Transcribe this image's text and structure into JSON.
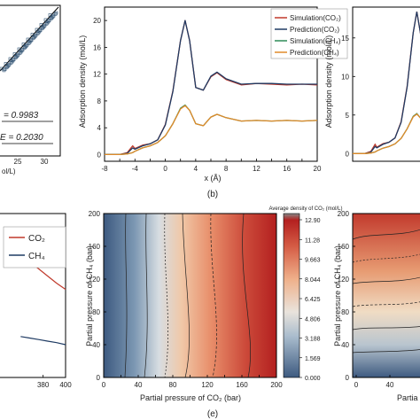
{
  "panel_a": {
    "stat_r2": "= 0.9983",
    "stat_err": "E = 0.2030",
    "xticks": [
      "25",
      "30"
    ],
    "xunit": "ol/L)"
  },
  "panel_b": {
    "caption": "(b)"
  },
  "panel_e": {
    "caption": "(e)",
    "colorbar_title": "Average density of CO₂ (mol/L)"
  },
  "panel_f": {
    "xlabel_partial": "Partia"
  },
  "colors": {
    "sim_co2": "#c0392b",
    "pred_co2": "#1f3b63",
    "sim_ch4": "#2e8b57",
    "pred_ch4": "#e08a2a"
  },
  "chart_data": [
    {
      "type": "scatter",
      "title": "",
      "xticks": [
        "25",
        "30"
      ],
      "note": "parity plot, partially cropped"
    },
    {
      "type": "line",
      "xlabel": "x (Å)",
      "ylabel": "Adsorption density (mol/L)",
      "xlim": [
        -8,
        20
      ],
      "ylim": [
        -1,
        22
      ],
      "xticks": [
        "-8",
        "-6",
        "-4",
        "-2",
        "0",
        "2",
        "4",
        "6",
        "8",
        "10",
        "12",
        "14",
        "16",
        "18",
        "20"
      ],
      "yticks": [
        "0",
        "4",
        "8",
        "12",
        "16",
        "20"
      ],
      "legend_position": "top-right",
      "x": [
        -8,
        -6,
        -5,
        -4.3,
        -4,
        -3,
        -2,
        -1,
        0,
        1,
        2,
        2.6,
        3.2,
        4,
        5,
        6,
        6.8,
        8,
        10,
        12,
        14,
        16,
        18,
        20
      ],
      "series": [
        {
          "name": "Simulation(CO₂)",
          "values": [
            0,
            0,
            0.3,
            1.3,
            0.9,
            1.4,
            1.6,
            2.2,
            4.5,
            9.5,
            17,
            20,
            17,
            10,
            9.6,
            11.6,
            12.2,
            11.2,
            10.4,
            10.6,
            10.5,
            10.4,
            10.5,
            10.4
          ]
        },
        {
          "name": "Prediction(CO₂)",
          "values": [
            0,
            0,
            0.2,
            1.0,
            0.8,
            1.3,
            1.6,
            2.2,
            4.4,
            9.4,
            17,
            20,
            17,
            10,
            9.6,
            11.7,
            12.3,
            11.3,
            10.5,
            10.6,
            10.6,
            10.5,
            10.5,
            10.5
          ]
        },
        {
          "name": "Simulation(CH₄)",
          "values": [
            0,
            0,
            0.1,
            0.3,
            0.5,
            1.0,
            1.3,
            1.8,
            2.8,
            4.6,
            6.9,
            7.4,
            6.6,
            4.6,
            4.3,
            5.6,
            6.0,
            5.5,
            5.0,
            5.1,
            5.0,
            5.1,
            5.0,
            5.1
          ]
        },
        {
          "name": "Prediction(CH₄)",
          "values": [
            0,
            0,
            0.1,
            0.3,
            0.5,
            1.0,
            1.3,
            1.8,
            2.8,
            4.6,
            6.8,
            7.3,
            6.6,
            4.6,
            4.3,
            5.6,
            6.0,
            5.5,
            5.0,
            5.1,
            5.0,
            5.1,
            5.0,
            5.1
          ]
        }
      ]
    },
    {
      "type": "line",
      "ylabel": "Adsorption density (mol/L)",
      "yticks": [
        "0",
        "5",
        "10",
        "15"
      ],
      "ylim": [
        -1,
        19
      ],
      "note": "cropped panel, same four series"
    },
    {
      "type": "line",
      "xticks": [
        "380",
        "400"
      ],
      "legend_position": "top-right",
      "series": [
        {
          "name": "CO₂",
          "values": [
            12.0,
            11.3,
            10.6,
            9.9,
            9.2,
            8.6
          ]
        },
        {
          "name": "CH₄",
          "values": [
            4.0,
            3.85,
            3.7,
            3.55,
            3.4,
            3.2
          ]
        }
      ],
      "x": [
        360,
        368,
        376,
        384,
        392,
        400
      ]
    },
    {
      "type": "heatmap",
      "xlabel": "Partial pressure of CO₂ (bar)",
      "ylabel": "Partial pressure of CH₄ (bar)",
      "xlim": [
        0,
        200
      ],
      "ylim": [
        0,
        200
      ],
      "xticks": [
        "0",
        "20",
        "40",
        "60",
        "80",
        "100",
        "120",
        "140",
        "160",
        "180",
        "200"
      ],
      "yticks": [
        "0",
        "40",
        "80",
        "120",
        "160",
        "200"
      ],
      "colorbar_ticks": [
        "12.90",
        "11.28",
        "9.663",
        "8.044",
        "6.425",
        "4.806",
        "3.188",
        "1.569",
        "0.000"
      ],
      "colorbar_range": [
        0,
        12.9
      ]
    },
    {
      "type": "heatmap",
      "ylabel": "Partial pressure of CH₄ (bar)",
      "xticks": [
        "0",
        "40"
      ],
      "yticks": [
        "0",
        "40",
        "80",
        "120",
        "160",
        "200"
      ],
      "note": "cropped panel"
    }
  ]
}
